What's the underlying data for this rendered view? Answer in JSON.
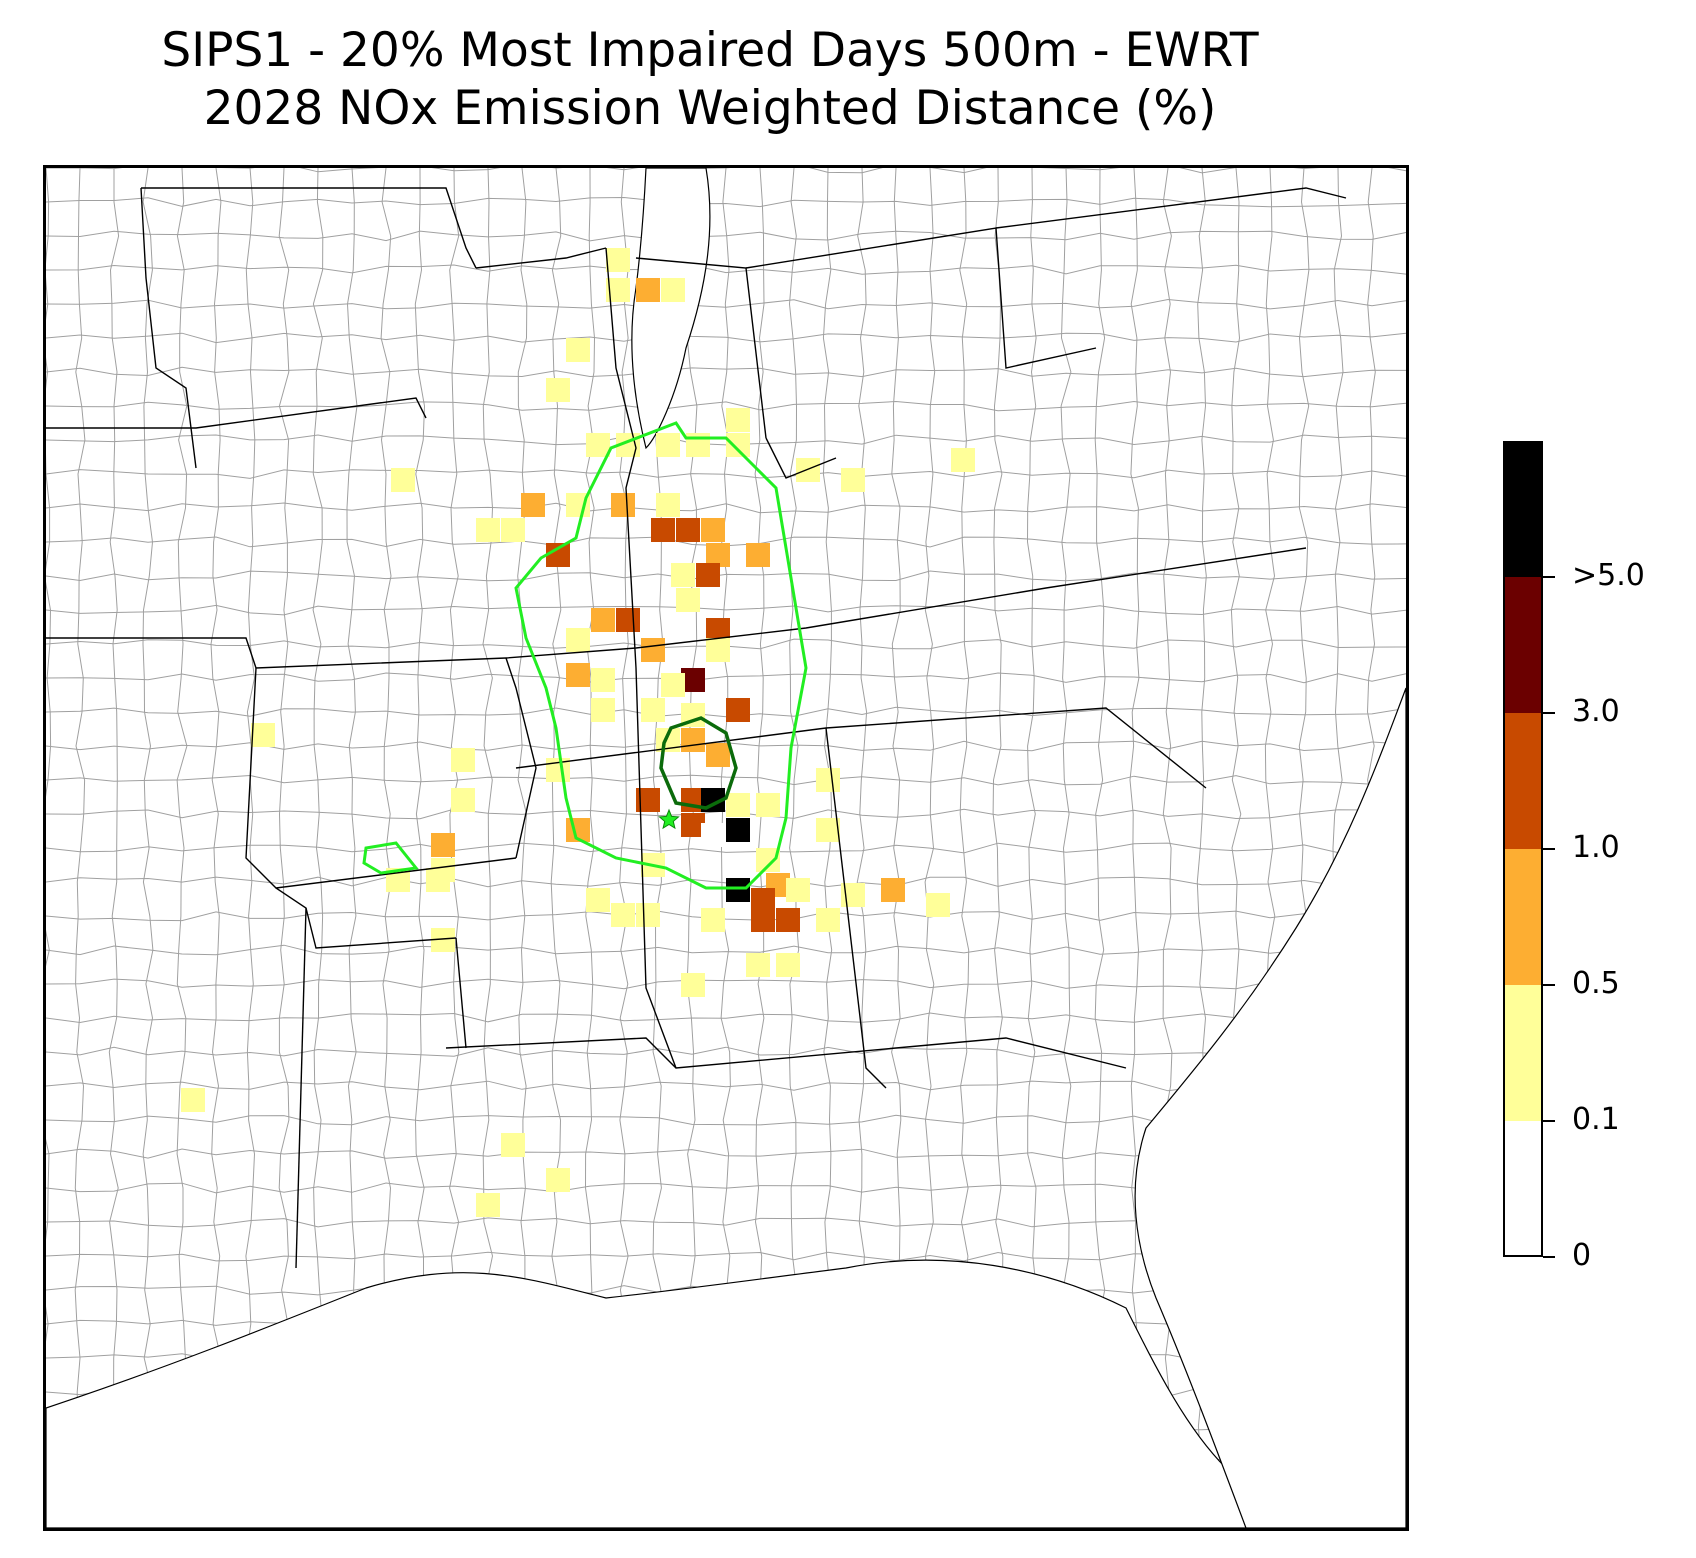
{
  "title": {
    "line1": "SIPS1 - 20% Most Impaired Days 500m - EWRT",
    "line2": "2028 NOx Emission Weighted Distance (%)"
  },
  "colorbar": {
    "labels": [
      "0",
      "0.1",
      "0.5",
      "1.0",
      "3.0",
      ">5.0"
    ],
    "bins": [
      {
        "min": 0,
        "max": 0.1,
        "color": "#ffffff"
      },
      {
        "min": 0.1,
        "max": 0.5,
        "color": "#ffff99"
      },
      {
        "min": 0.5,
        "max": 1.0,
        "color": "#fdae32"
      },
      {
        "min": 1.0,
        "max": 3.0,
        "color": "#c84a00"
      },
      {
        "min": 3.0,
        "max": 5.0,
        "color": "#6b0000"
      },
      {
        "min": 5.0,
        "max": null,
        "color": "#000000"
      }
    ]
  },
  "colors": {
    "outer_contour": "#22ee22",
    "inner_contour": "#0b6b0b",
    "source_marker": "#22ee22",
    "state_lines": "#000000",
    "county_lines": "#a0a0a0"
  },
  "icons": {
    "source": "star-icon"
  },
  "chart_data": {
    "type": "heatmap",
    "title": "SIPS1 - 20% Most Impaired Days 500m - EWRT 2028 NOx Emission Weighted Distance (%)",
    "legend": "right",
    "grid": false,
    "cells_note_units": "percent",
    "cells": [
      {
        "bin": 1
      },
      {
        "bin": 2
      },
      {
        "bin": 3
      },
      {
        "bin": 4
      },
      {
        "bin": 5
      }
    ]
  }
}
